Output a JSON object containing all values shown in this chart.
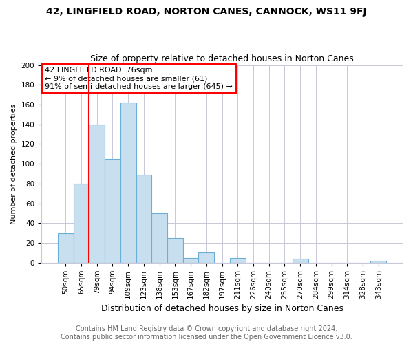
{
  "title": "42, LINGFIELD ROAD, NORTON CANES, CANNOCK, WS11 9FJ",
  "subtitle": "Size of property relative to detached houses in Norton Canes",
  "xlabel": "Distribution of detached houses by size in Norton Canes",
  "ylabel": "Number of detached properties",
  "bar_labels": [
    "50sqm",
    "65sqm",
    "79sqm",
    "94sqm",
    "109sqm",
    "123sqm",
    "138sqm",
    "153sqm",
    "167sqm",
    "182sqm",
    "197sqm",
    "211sqm",
    "226sqm",
    "240sqm",
    "255sqm",
    "270sqm",
    "284sqm",
    "299sqm",
    "314sqm",
    "328sqm",
    "343sqm"
  ],
  "bar_heights": [
    30,
    80,
    140,
    105,
    162,
    89,
    50,
    25,
    5,
    10,
    0,
    5,
    0,
    0,
    0,
    4,
    0,
    0,
    0,
    0,
    2
  ],
  "bar_color": "#c8dff0",
  "bar_edge_color": "#6baed6",
  "grid_color": "#c8c8d8",
  "vline_color": "red",
  "ylim": [
    0,
    200
  ],
  "yticks": [
    0,
    20,
    40,
    60,
    80,
    100,
    120,
    140,
    160,
    180,
    200
  ],
  "annotation_line1": "42 LINGFIELD ROAD: 76sqm",
  "annotation_line2": "← 9% of detached houses are smaller (61)",
  "annotation_line3": "91% of semi-detached houses are larger (645) →",
  "footer_line1": "Contains HM Land Registry data © Crown copyright and database right 2024.",
  "footer_line2": "Contains public sector information licensed under the Open Government Licence v3.0.",
  "title_fontsize": 10,
  "subtitle_fontsize": 9,
  "ylabel_fontsize": 8,
  "xlabel_fontsize": 9,
  "tick_fontsize": 7.5,
  "annotation_fontsize": 8,
  "footer_fontsize": 7
}
